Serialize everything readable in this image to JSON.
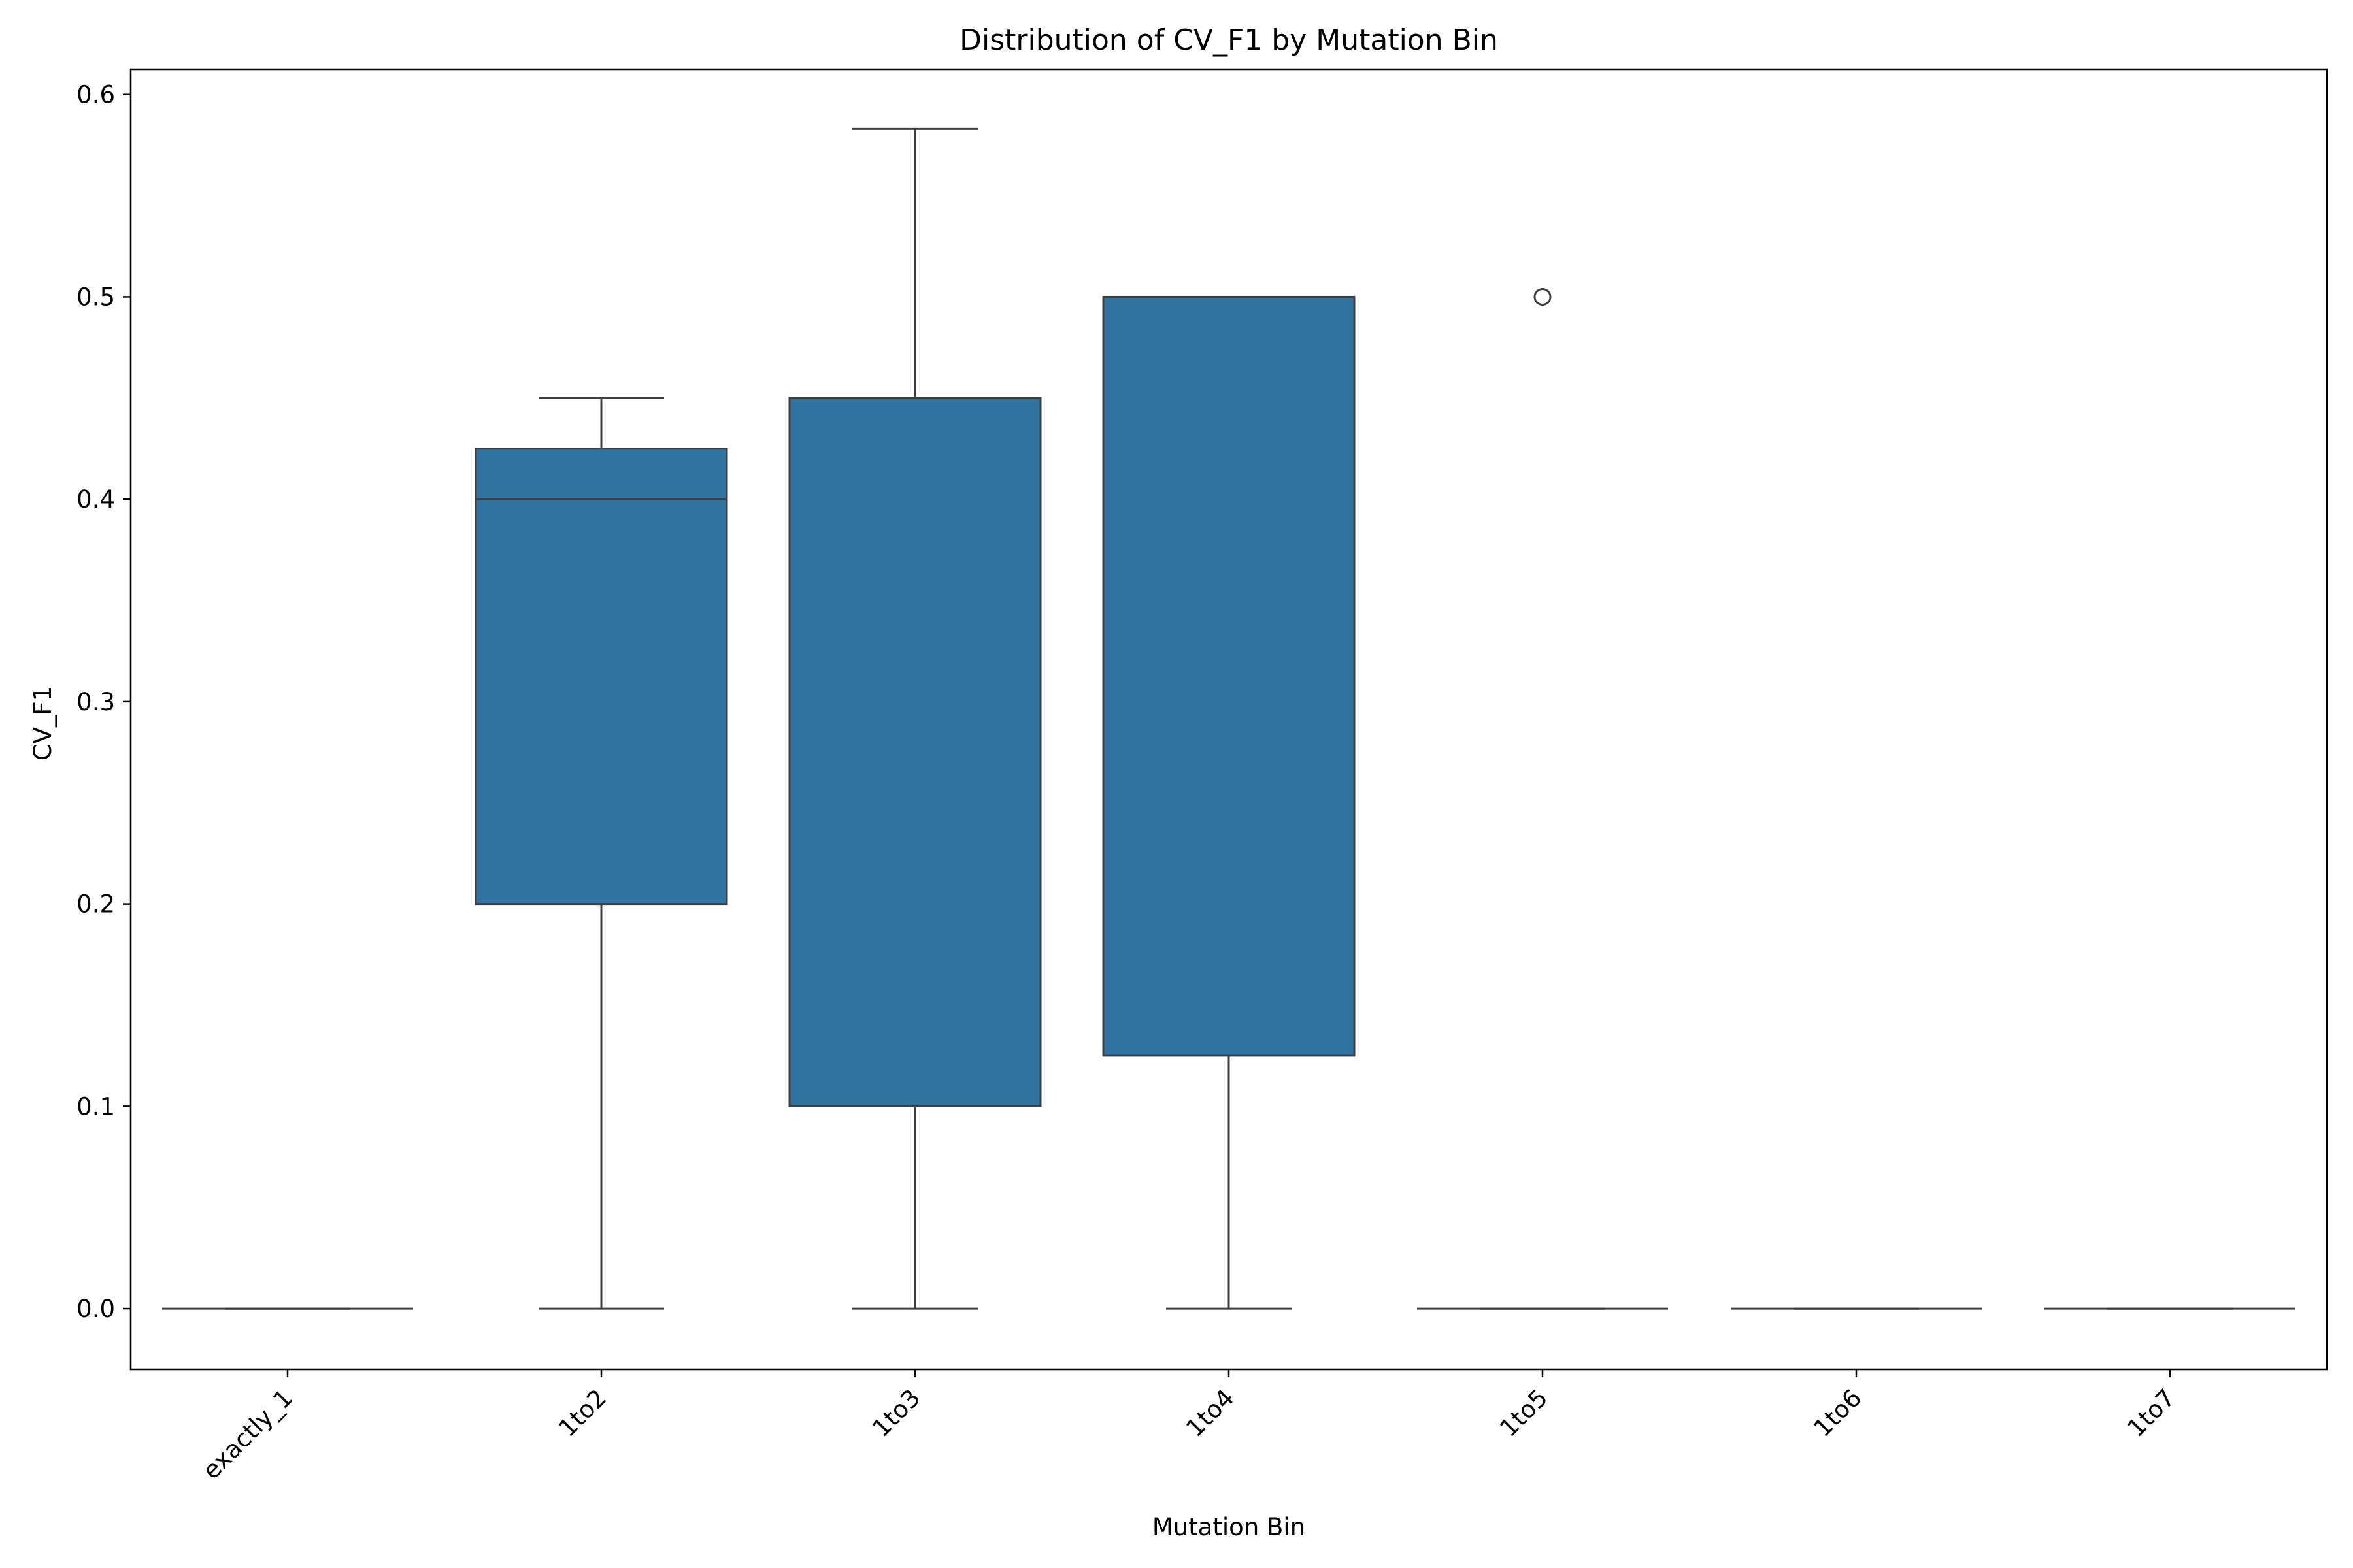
{
  "chart_data": {
    "type": "box",
    "title": "Distribution of CV_F1 by Mutation Bin",
    "xlabel": "Mutation Bin",
    "ylabel": "CV_F1",
    "ylim": [
      -0.03,
      0.6125
    ],
    "yticks": [
      0.0,
      0.1,
      0.2,
      0.3,
      0.4,
      0.5,
      0.6
    ],
    "ytick_labels": [
      "0.0",
      "0.1",
      "0.2",
      "0.3",
      "0.4",
      "0.5",
      "0.6"
    ],
    "categories": [
      "exactly_1",
      "1to2",
      "1to3",
      "1to4",
      "1to5",
      "1to6",
      "1to7"
    ],
    "boxes": [
      {
        "category": "exactly_1",
        "whisker_low": 0.0,
        "q1": 0.0,
        "median": 0.0,
        "q3": 0.0,
        "whisker_high": 0.0,
        "outliers": []
      },
      {
        "category": "1to2",
        "whisker_low": 0.0,
        "q1": 0.2,
        "median": 0.4,
        "q3": 0.425,
        "whisker_high": 0.45,
        "outliers": []
      },
      {
        "category": "1to3",
        "whisker_low": 0.0,
        "q1": 0.1,
        "median": 0.45,
        "q3": 0.45,
        "whisker_high": 0.583,
        "outliers": []
      },
      {
        "category": "1to4",
        "whisker_low": 0.0,
        "q1": 0.125,
        "median": 0.5,
        "q3": 0.5,
        "whisker_high": 0.5,
        "outliers": []
      },
      {
        "category": "1to5",
        "whisker_low": 0.0,
        "q1": 0.0,
        "median": 0.0,
        "q3": 0.0,
        "whisker_high": 0.0,
        "outliers": [
          0.5
        ]
      },
      {
        "category": "1to6",
        "whisker_low": 0.0,
        "q1": 0.0,
        "median": 0.0,
        "q3": 0.0,
        "whisker_high": 0.0,
        "outliers": []
      },
      {
        "category": "1to7",
        "whisker_low": 0.0,
        "q1": 0.0,
        "median": 0.0,
        "q3": 0.0,
        "whisker_high": 0.0,
        "outliers": []
      }
    ],
    "box_color": "#3274a1",
    "line_color": "#3f3f3f",
    "grid": false,
    "legend": "none"
  }
}
